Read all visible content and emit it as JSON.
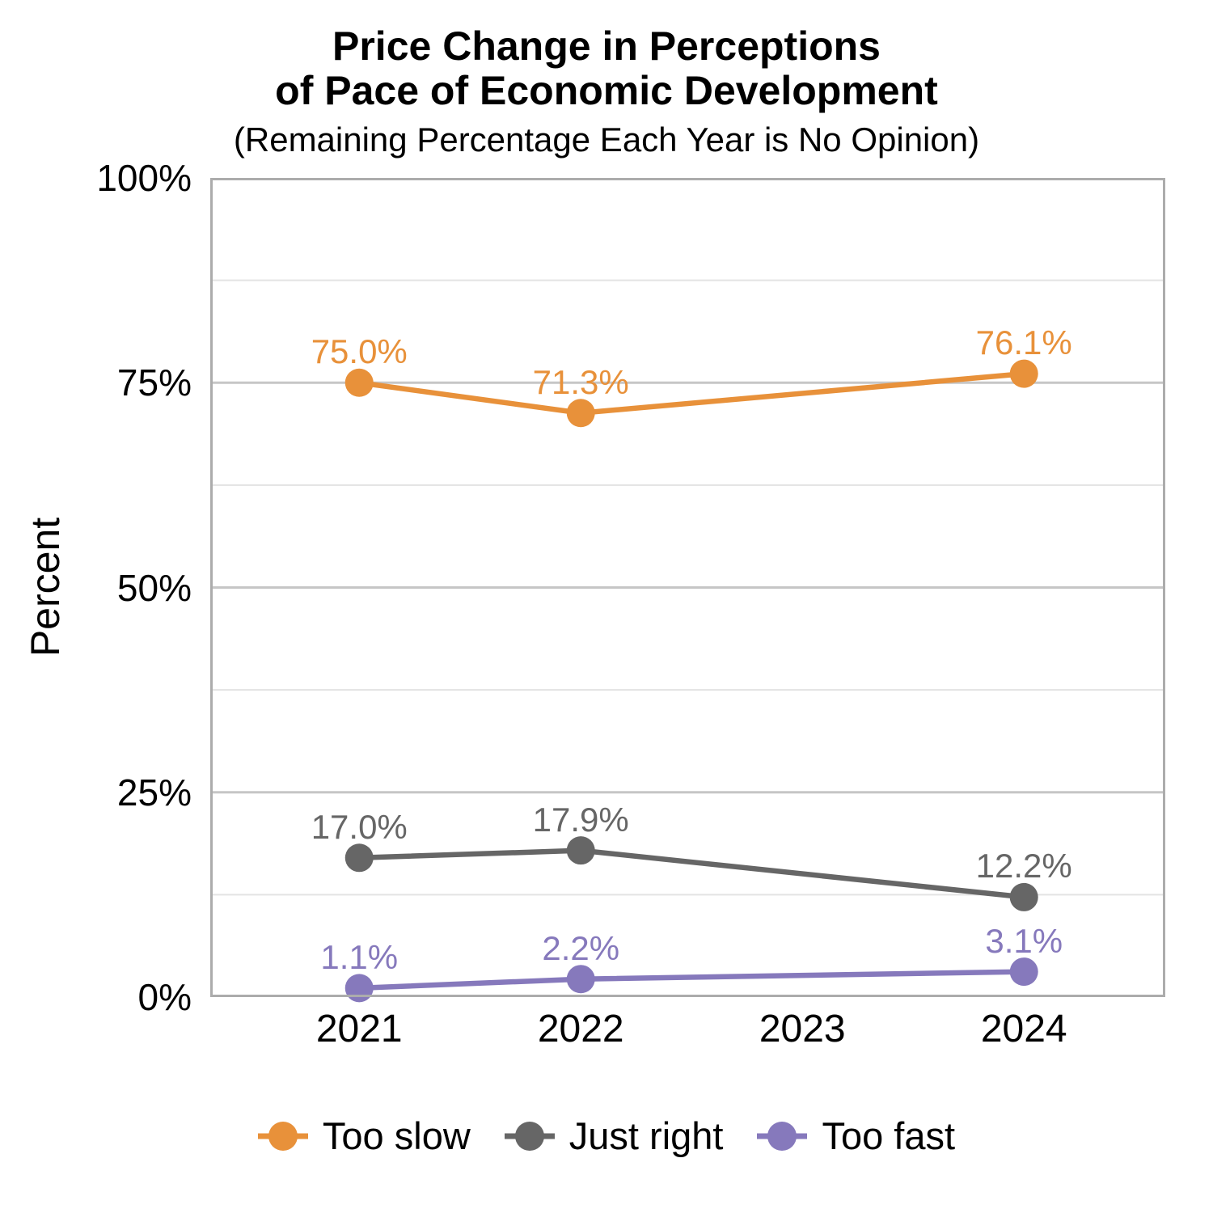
{
  "chart_data": {
    "type": "line",
    "title_lines": [
      "Price Change in Perceptions",
      "of Pace of Economic Development"
    ],
    "subtitle": "(Remaining Percentage Each Year is No Opinion)",
    "ylabel": "Percent",
    "xlabel": "",
    "ylim": [
      0,
      100
    ],
    "yticks": [
      {
        "value": 0,
        "label": "0%"
      },
      {
        "value": 25,
        "label": "25%"
      },
      {
        "value": 50,
        "label": "50%"
      },
      {
        "value": 75,
        "label": "75%"
      },
      {
        "value": 100,
        "label": "100%"
      }
    ],
    "minor_grid_step": 12.5,
    "major_grid_step": 25,
    "grid": true,
    "legend_position": "bottom",
    "categories": [
      "2021",
      "2022",
      "2023",
      "2024"
    ],
    "series": [
      {
        "name": "Too slow",
        "color": "#E8913A",
        "points": [
          {
            "year": "2021",
            "value": 75.0,
            "label": "75.0%"
          },
          {
            "year": "2022",
            "value": 71.3,
            "label": "71.3%"
          },
          {
            "year": "2024",
            "value": 76.1,
            "label": "76.1%"
          }
        ]
      },
      {
        "name": "Just right",
        "color": "#666666",
        "points": [
          {
            "year": "2021",
            "value": 17.0,
            "label": "17.0%"
          },
          {
            "year": "2022",
            "value": 17.9,
            "label": "17.9%"
          },
          {
            "year": "2024",
            "value": 12.2,
            "label": "12.2%"
          }
        ]
      },
      {
        "name": "Too fast",
        "color": "#8679BC",
        "points": [
          {
            "year": "2021",
            "value": 1.1,
            "label": "1.1%"
          },
          {
            "year": "2022",
            "value": 2.2,
            "label": "2.2%"
          },
          {
            "year": "2024",
            "value": 3.1,
            "label": "3.1%"
          }
        ]
      }
    ],
    "panel_colors": {
      "border": "#ACACAC",
      "grid_major": "#C6C6C6",
      "grid_minor": "#E3E3E3"
    }
  }
}
